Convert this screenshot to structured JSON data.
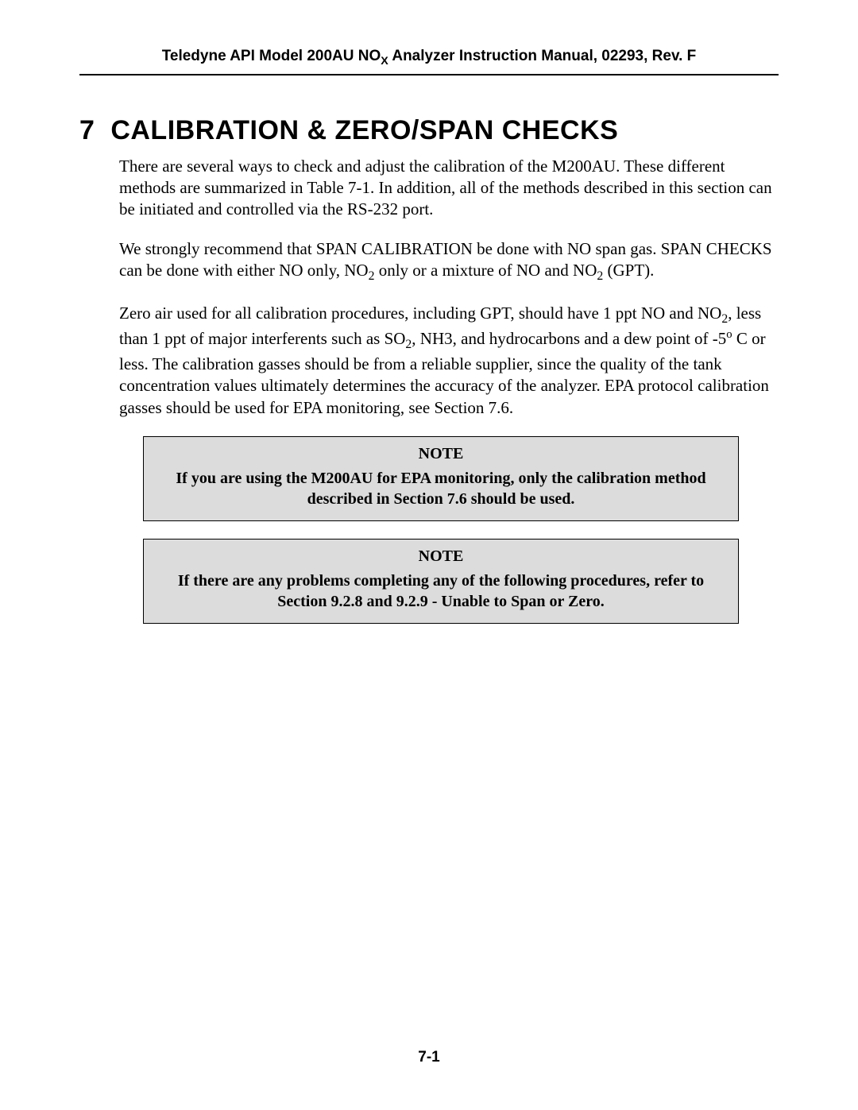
{
  "header": {
    "prefix": "Teledyne API Model 200AU NO",
    "sub": "X",
    "suffix": " Analyzer Instruction Manual, 02293, Rev. F"
  },
  "section": {
    "number": "7",
    "title": "CALIBRATION & ZERO/SPAN CHECKS"
  },
  "paragraphs": {
    "p1": "There are several ways to check and adjust the calibration of the M200AU. These different methods are summarized in Table 7-1. In addition, all of the methods described in this section can be initiated and controlled via the RS-232 port.",
    "p2_a": "We strongly recommend that SPAN CALIBRATION be done with NO span gas. SPAN CHECKS can be done with either NO only, NO",
    "p2_b": " only or a mixture of NO and NO",
    "p2_c": " (GPT).",
    "p3_a": "Zero air used for all calibration procedures, including GPT, should have 1 ppt NO and NO",
    "p3_b": ", less than 1 ppt of major interferents such as SO",
    "p3_c": ", NH3, and hydrocarbons and a dew point of -5",
    "p3_d": " C or less. The calibration gasses should be from a reliable supplier, since the quality of the tank concentration values ultimately determines the accuracy of the analyzer. EPA protocol calibration gasses should be used for EPA monitoring, see Section 7.6."
  },
  "note1": {
    "title": "NOTE",
    "body": "If you are using the M200AU for EPA monitoring, only the calibration method described in Section 7.6 should be used."
  },
  "note2": {
    "title": "NOTE",
    "body": "If there are any problems completing any of the following procedures, refer to Section 9.2.8 and 9.2.9 - Unable to Span or Zero."
  },
  "subscripts": {
    "two": "2",
    "deg": "o"
  },
  "page_number": "7-1"
}
